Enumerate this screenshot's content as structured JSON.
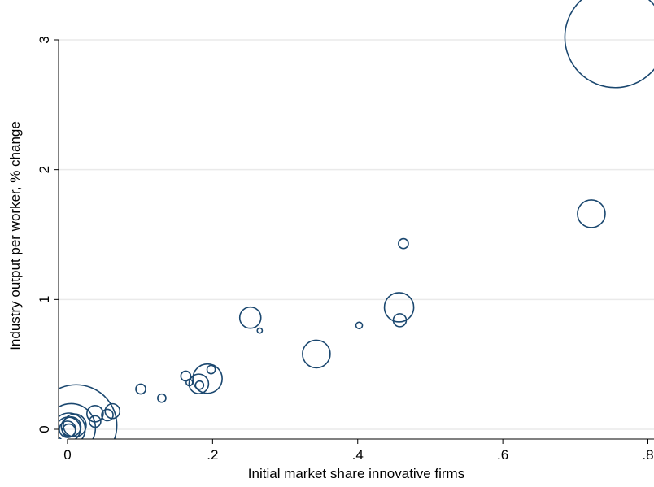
{
  "chart_data": {
    "type": "scatter",
    "xlabel": "Initial market share innovative firms",
    "ylabel": "Industry output per worker, % change",
    "color": "#1a476f",
    "grid": true,
    "xlim": [
      -0.0123,
      0.8084
    ],
    "ylim": [
      -0.0751,
      3.3068
    ],
    "xticks": [
      0,
      {
        "value": 0.2,
        "label": ".2"
      },
      {
        "value": 0.4,
        "label": ".4"
      },
      {
        "value": 0.6,
        "label": ".6"
      },
      {
        "value": 0.8,
        "label": ".8"
      }
    ],
    "yticks": [
      0,
      1,
      2,
      3
    ],
    "x": [
      0.755,
      0.722,
      0.463,
      0.457,
      0.458,
      0.402,
      0.343,
      0.252,
      0.265,
      0.193,
      0.181,
      0.198,
      0.163,
      0.168,
      0.182,
      0.101,
      0.13,
      0.062,
      0.055,
      0.038,
      0.038,
      0.012,
      0.005,
      0.002,
      0.001,
      0.0,
      0.005,
      0.002,
      0.01
    ],
    "values": [
      3.02,
      1.66,
      1.43,
      0.94,
      0.84,
      0.8,
      0.58,
      0.86,
      0.76,
      0.39,
      0.35,
      0.46,
      0.41,
      0.36,
      0.34,
      0.31,
      0.24,
      0.14,
      0.11,
      0.12,
      0.06,
      0.03,
      0.01,
      0.0,
      0.0,
      0.0,
      0.02,
      -0.01,
      0.03
    ],
    "sizes": [
      240,
      18.1,
      2.3,
      20.3,
      4,
      1,
      18.1,
      10.6,
      0.6,
      20.3,
      9,
      1.6,
      2.3,
      1,
      1.6,
      2.3,
      1.6,
      5.1,
      3.1,
      6.3,
      3.1,
      156,
      56,
      25,
      14,
      6.3,
      9,
      4,
      12.3
    ]
  }
}
